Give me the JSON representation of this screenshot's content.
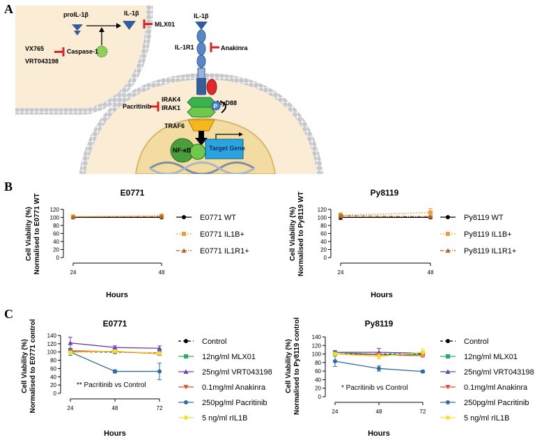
{
  "panel_labels": {
    "a": "A",
    "b": "B",
    "c": "C"
  },
  "diagram": {
    "proil1b": "proIL-1β",
    "il1b_left": "IL-1β",
    "mlx01": "MLX01",
    "vx765": "VX765",
    "caspase1": "Caspase-1",
    "vrt043198": "VRT043198",
    "il1b_top": "IL-1β",
    "il1r1": "IL-1R1",
    "anakinra": "Anakinra",
    "myd88": "MyD88",
    "irak4": "IRAK4",
    "irak1": "IRAK1",
    "pacritinib": "Pacritinib",
    "p": "P",
    "traf6": "TRAF6",
    "nfkb": "NF-κB",
    "target_gene": "Target Gene",
    "colors": {
      "cytoplasm": "#fbecd5",
      "nucleus": "#f3dca2",
      "receptor": "#5b86c6",
      "inhibitor": "#e02020",
      "caspase": "#8fce5a",
      "myd88": "#e0282d",
      "irak": "#3cb34a",
      "traf6": "#f6b71c",
      "gene": "#2aa4df"
    }
  },
  "chart_data": [
    {
      "id": "b1",
      "type": "line",
      "title": "E0771",
      "xlabel": "Hours",
      "ylabel": [
        "Cell Viability (%)",
        "Normalised to E0771 WT"
      ],
      "x": [
        24,
        48
      ],
      "ylim": [
        0,
        130
      ],
      "yticks": [
        0,
        20,
        40,
        60,
        80,
        100,
        120
      ],
      "series": [
        {
          "name": "E0771 WT",
          "values": [
            100,
            100
          ],
          "err": [
            2,
            2
          ],
          "color": "#000000",
          "dash": "",
          "marker": "circle"
        },
        {
          "name": "E0771 IL1B+",
          "values": [
            102,
            104
          ],
          "err": [
            2,
            4
          ],
          "color": "#f39c34",
          "dash": "2,2",
          "marker": "square"
        },
        {
          "name": "E0771 IL1R1+",
          "values": [
            101,
            102
          ],
          "err": [
            1,
            2
          ],
          "color": "#b5651d",
          "dash": "5,2,1,2",
          "marker": "triangle"
        }
      ]
    },
    {
      "id": "b2",
      "type": "line",
      "title": "Py8119",
      "xlabel": "Hours",
      "ylabel": [
        "Cell Viability (%)",
        "Normalised to Py8119 WT"
      ],
      "x": [
        24,
        48
      ],
      "ylim": [
        0,
        130
      ],
      "yticks": [
        0,
        20,
        40,
        60,
        80,
        100,
        120
      ],
      "series": [
        {
          "name": "Py8119 WT",
          "values": [
            100,
            100
          ],
          "err": [
            5,
            3
          ],
          "color": "#000000",
          "dash": "",
          "marker": "circle"
        },
        {
          "name": "Py8119 IL1B+",
          "values": [
            105,
            112
          ],
          "err": [
            6,
            10
          ],
          "color": "#f39c34",
          "dash": "2,2",
          "marker": "square"
        },
        {
          "name": "Py8119 IL1R1+",
          "values": [
            104,
            102
          ],
          "err": [
            3,
            2
          ],
          "color": "#b5651d",
          "dash": "5,2,1,2",
          "marker": "triangle"
        }
      ]
    },
    {
      "id": "c1",
      "type": "line",
      "title": "E0771",
      "xlabel": "Hours",
      "ylabel": [
        "Cell Viability (%)",
        "Normalised to E0771 control"
      ],
      "x": [
        24,
        48,
        72
      ],
      "ylim": [
        0,
        140
      ],
      "yticks": [
        0,
        20,
        40,
        60,
        80,
        100,
        120,
        140
      ],
      "annotation": "** Pacritinib  vs Control",
      "series": [
        {
          "name": "Control",
          "values": [
            100,
            100,
            98
          ],
          "err": [
            3,
            3,
            3
          ],
          "color": "#000000",
          "dash": "4,3",
          "marker": "circle"
        },
        {
          "name": "12ng/ml MLX01",
          "values": [
            101,
            101,
            97
          ],
          "err": [
            5,
            4,
            4
          ],
          "color": "#27ae60",
          "dash": "",
          "marker": "square"
        },
        {
          "name": "25ng/ml VRT043198",
          "values": [
            122,
            111,
            109
          ],
          "err": [
            14,
            4,
            6
          ],
          "color": "#6a3fb5",
          "dash": "",
          "marker": "triangle"
        },
        {
          "name": "0.1mg/ml Anakinra",
          "values": [
            103,
            101,
            96
          ],
          "err": [
            6,
            3,
            4
          ],
          "color": "#e74c3c",
          "dash": "",
          "marker": "triangle-down"
        },
        {
          "name": "250pg/ml Pacritinib",
          "values": [
            100,
            53,
            53
          ],
          "err": [
            8,
            4,
            20
          ],
          "color": "#2e6aa6",
          "dash": "",
          "marker": "circle"
        },
        {
          "name": "5 ng/ml rIL1B",
          "values": [
            99,
            102,
            97
          ],
          "err": [
            3,
            3,
            3
          ],
          "color": "#f1e12a",
          "dash": "",
          "marker": "circle"
        }
      ]
    },
    {
      "id": "c2",
      "type": "line",
      "title": "Py8119",
      "xlabel": "Hours",
      "ylabel": [
        "Cell Viability (%)",
        "Normalised to Py8119 control"
      ],
      "x": [
        24,
        48,
        72
      ],
      "ylim": [
        0,
        140
      ],
      "yticks": [
        0,
        20,
        40,
        60,
        80,
        100,
        120,
        140
      ],
      "annotation": "* Pacritinib  vs Control",
      "series": [
        {
          "name": "Control",
          "values": [
            100,
            100,
            100
          ],
          "err": [
            2,
            3,
            3
          ],
          "color": "#000000",
          "dash": "4,3",
          "marker": "circle"
        },
        {
          "name": "12ng/ml MLX01",
          "values": [
            104,
            99,
            99
          ],
          "err": [
            3,
            4,
            3
          ],
          "color": "#27ae60",
          "dash": "",
          "marker": "square"
        },
        {
          "name": "25ng/ml VRT043198",
          "values": [
            104,
            104,
            102
          ],
          "err": [
            3,
            9,
            4
          ],
          "color": "#6a3fb5",
          "dash": "",
          "marker": "triangle"
        },
        {
          "name": "0.1mg/ml Anakinra",
          "values": [
            100,
            98,
            96
          ],
          "err": [
            3,
            3,
            3
          ],
          "color": "#e74c3c",
          "dash": "",
          "marker": "triangle-down"
        },
        {
          "name": "250pg/ml Pacritinib",
          "values": [
            83,
            66,
            59
          ],
          "err": [
            12,
            6,
            3
          ],
          "color": "#2e6aa6",
          "dash": "",
          "marker": "circle"
        },
        {
          "name": "5 ng/ml rIL1B",
          "values": [
            100,
            94,
            104
          ],
          "err": [
            4,
            6,
            8
          ],
          "color": "#f1e12a",
          "dash": "",
          "marker": "circle"
        }
      ]
    }
  ]
}
